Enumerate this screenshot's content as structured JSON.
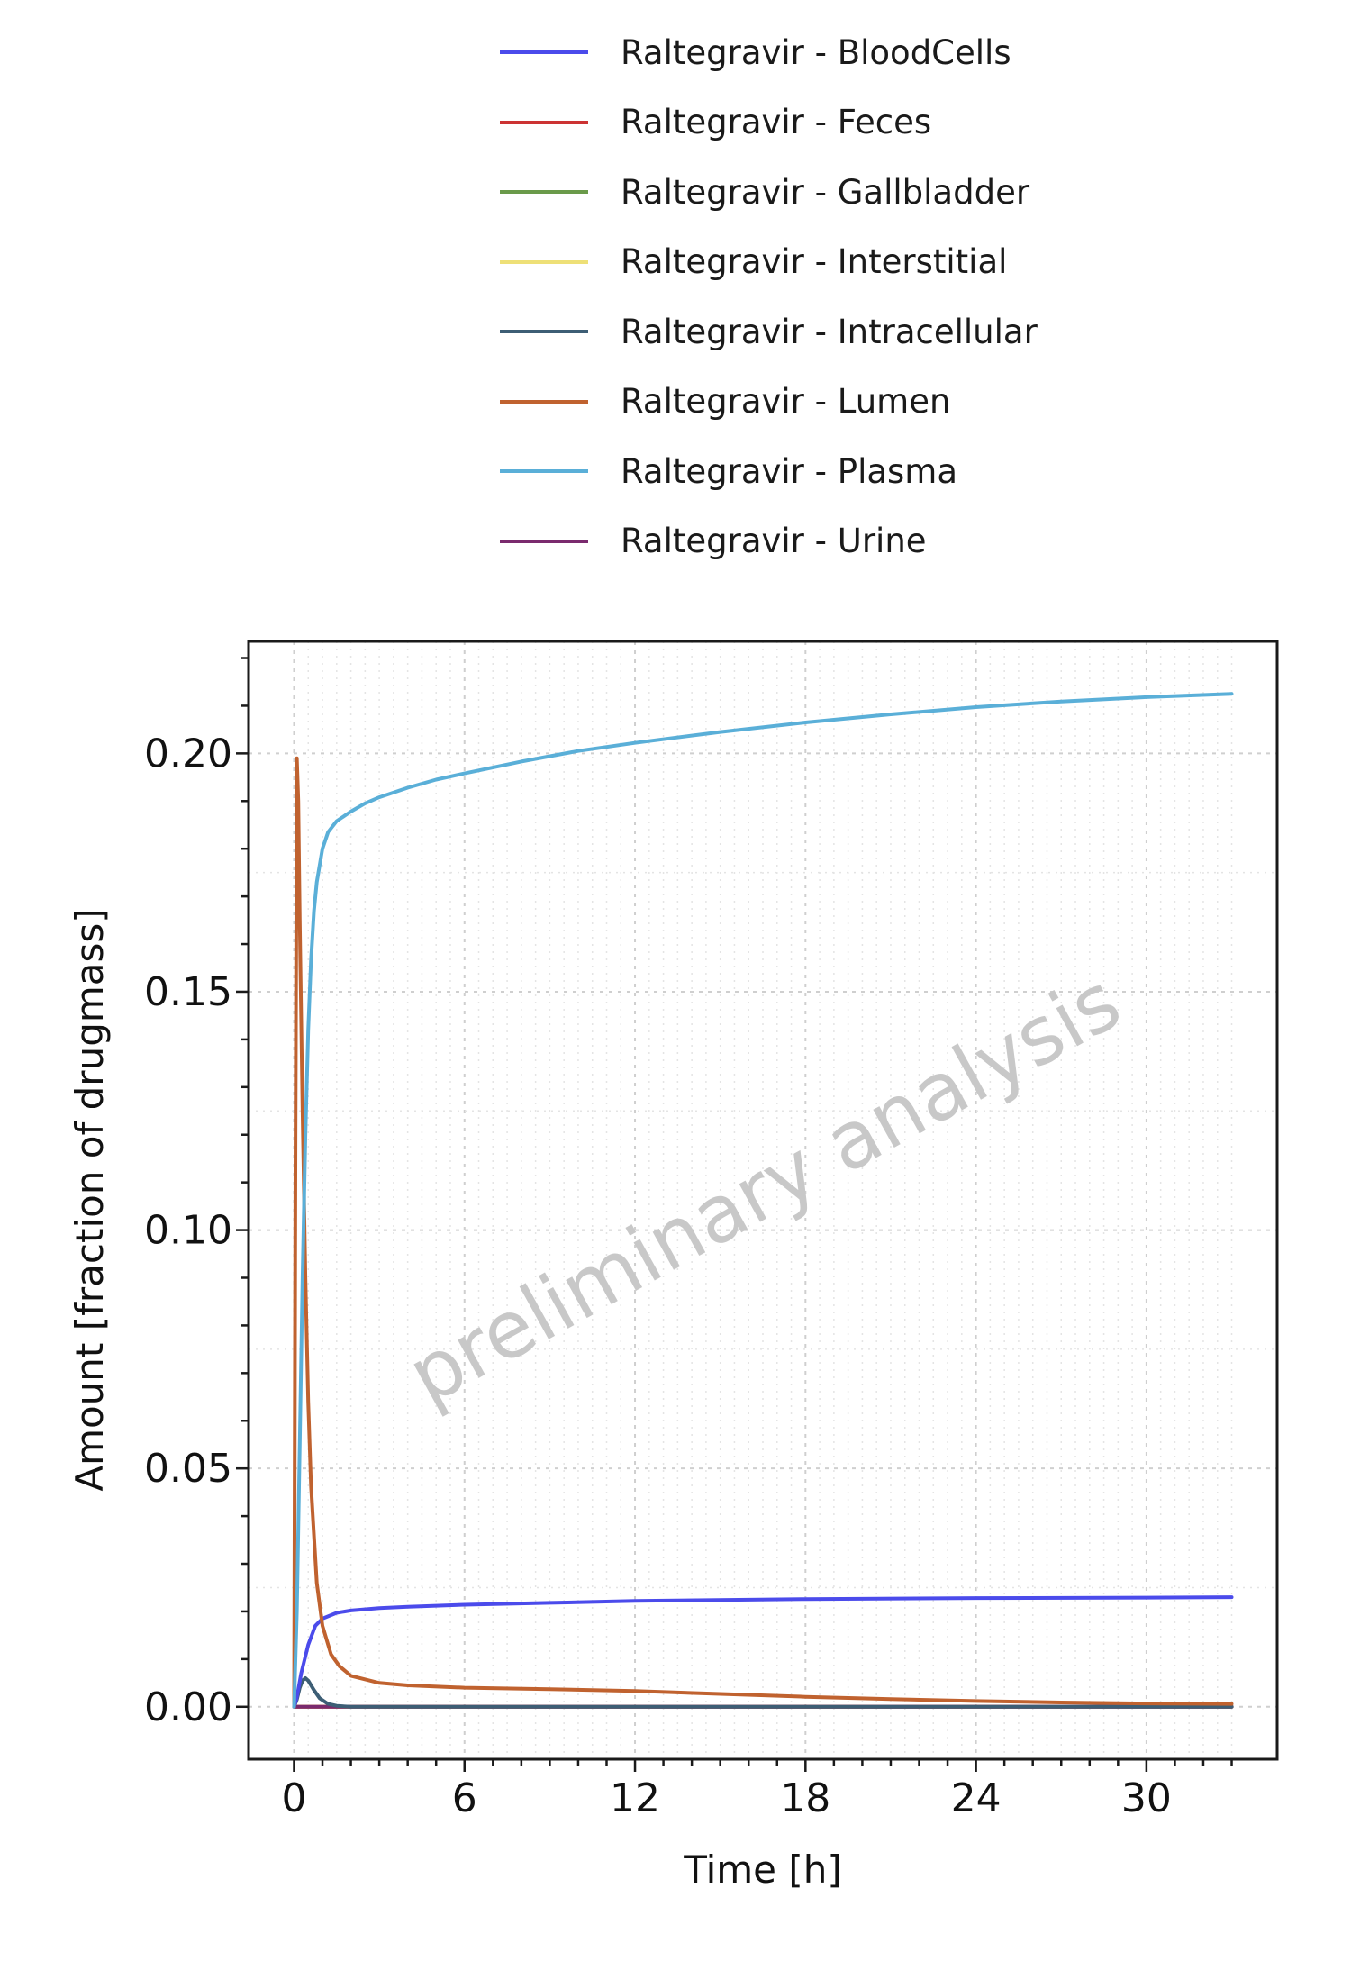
{
  "chart_data": {
    "type": "line",
    "title": "",
    "xlabel": "Time [h]",
    "ylabel": "Amount [fraction of drugmass]",
    "xlim": [
      -1.6,
      34.6
    ],
    "ylim": [
      -0.011,
      0.2235
    ],
    "xticks": [
      0,
      6,
      12,
      18,
      24,
      30
    ],
    "xtick_labels": [
      "0",
      "6",
      "12",
      "18",
      "24",
      "30"
    ],
    "yticks": [
      0,
      0.05,
      0.1,
      0.15,
      0.2
    ],
    "ytick_labels": [
      "0.00",
      "0.05",
      "0.10",
      "0.15",
      "0.20"
    ],
    "grid": true,
    "legend_position": "top",
    "watermark": "preliminary analysis",
    "series": [
      {
        "name": "Raltegravir - BloodCells",
        "color": "#4B4BEB",
        "x": [
          0,
          0.1,
          0.25,
          0.5,
          0.75,
          1,
          1.5,
          2,
          3,
          4,
          6,
          9,
          12,
          18,
          24,
          30,
          33
        ],
        "y": [
          0,
          0.002,
          0.007,
          0.013,
          0.017,
          0.0185,
          0.0197,
          0.0202,
          0.0207,
          0.021,
          0.0214,
          0.0218,
          0.0222,
          0.0226,
          0.0228,
          0.0229,
          0.023
        ]
      },
      {
        "name": "Raltegravir - Feces",
        "color": "#CC3333",
        "x": [
          0,
          33
        ],
        "y": [
          0,
          0
        ]
      },
      {
        "name": "Raltegravir - Gallbladder",
        "color": "#6A9A4A",
        "x": [
          0,
          33
        ],
        "y": [
          0,
          0
        ]
      },
      {
        "name": "Raltegravir - Interstitial",
        "color": "#EEE077",
        "x": [
          0,
          33
        ],
        "y": [
          0,
          0
        ]
      },
      {
        "name": "Raltegravir - Intracellular",
        "color": "#3D5E75",
        "x": [
          0,
          0.1,
          0.2,
          0.3,
          0.4,
          0.5,
          0.7,
          0.9,
          1.2,
          1.5,
          2,
          33
        ],
        "y": [
          0,
          0.0015,
          0.004,
          0.0055,
          0.006,
          0.0055,
          0.0035,
          0.0018,
          0.0006,
          0.0002,
          0,
          0
        ]
      },
      {
        "name": "Raltegravir - Lumen",
        "color": "#C0622F",
        "x": [
          0,
          0.05,
          0.1,
          0.15,
          0.2,
          0.3,
          0.4,
          0.5,
          0.6,
          0.8,
          1,
          1.3,
          1.6,
          2,
          3,
          4,
          6,
          9,
          12,
          15,
          18,
          21,
          24,
          27,
          30,
          33
        ],
        "y": [
          0,
          0.12,
          0.199,
          0.19,
          0.165,
          0.125,
          0.09,
          0.064,
          0.046,
          0.026,
          0.017,
          0.011,
          0.0085,
          0.0065,
          0.005,
          0.0045,
          0.004,
          0.0037,
          0.0033,
          0.0027,
          0.0021,
          0.0016,
          0.0012,
          0.0009,
          0.0007,
          0.0006
        ]
      },
      {
        "name": "Raltegravir - Plasma",
        "color": "#5AAFD8",
        "x": [
          0,
          0.1,
          0.2,
          0.3,
          0.4,
          0.5,
          0.6,
          0.7,
          0.8,
          1,
          1.2,
          1.5,
          2,
          2.5,
          3,
          4,
          5,
          6,
          8,
          10,
          12,
          15,
          18,
          21,
          24,
          27,
          30,
          33
        ],
        "y": [
          0,
          0.02,
          0.055,
          0.09,
          0.12,
          0.142,
          0.157,
          0.167,
          0.173,
          0.18,
          0.1835,
          0.1858,
          0.1878,
          0.1895,
          0.1908,
          0.1928,
          0.1945,
          0.1958,
          0.1983,
          0.2005,
          0.2022,
          0.2045,
          0.2065,
          0.2082,
          0.2097,
          0.2109,
          0.2118,
          0.2125
        ]
      },
      {
        "name": "Raltegravir - Urine",
        "color": "#7A2A6E",
        "x": [
          0,
          33
        ],
        "y": [
          0,
          0
        ]
      }
    ]
  }
}
